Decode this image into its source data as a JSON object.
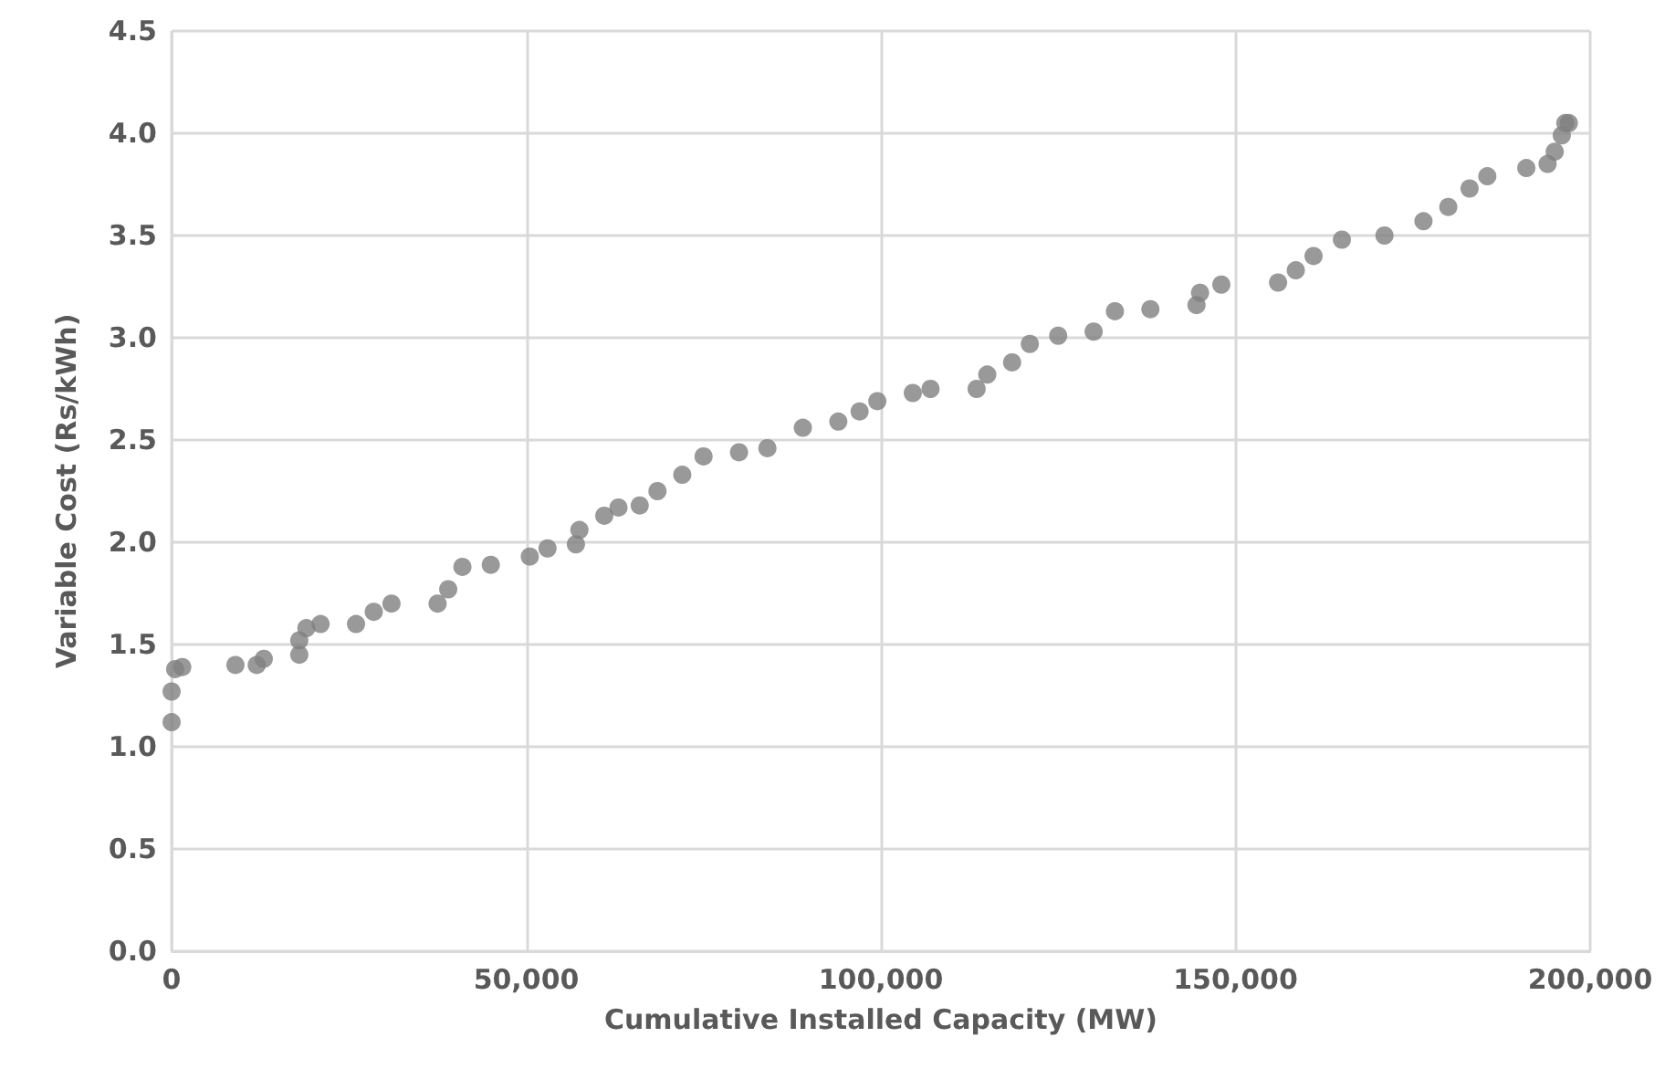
{
  "chart_data": {
    "type": "scatter",
    "xlabel": "Cumulative Installed Capacity (MW)",
    "ylabel": "Variable Cost (Rs/kWh)",
    "xlim": [
      0,
      200000
    ],
    "xticks": [
      {
        "value": 0,
        "label": "0"
      },
      {
        "value": 50000,
        "label": "50,000"
      },
      {
        "value": 100000,
        "label": "100,000"
      },
      {
        "value": 150000,
        "label": "150,000"
      },
      {
        "value": 200000,
        "label": "200,000"
      }
    ],
    "ylim": [
      0,
      4.5
    ],
    "yticks": [
      {
        "value": 0,
        "label": "0.0"
      },
      {
        "value": 0.5,
        "label": "0.5"
      },
      {
        "value": 1,
        "label": "1.0"
      },
      {
        "value": 1.5,
        "label": "1.5"
      },
      {
        "value": 2,
        "label": "2.0"
      },
      {
        "value": 2.5,
        "label": "2.5"
      },
      {
        "value": 3,
        "label": "3.0"
      },
      {
        "value": 3.5,
        "label": "3.5"
      },
      {
        "value": 4,
        "label": "4.0"
      },
      {
        "value": 4.5,
        "label": "4.5"
      }
    ],
    "grid": true,
    "marker": "circle",
    "series": [
      {
        "color": "#7f7f7f",
        "x": [
          0,
          0,
          500,
          1500,
          9000,
          12000,
          13000,
          18000,
          18000,
          19000,
          21000,
          26000,
          28500,
          31000,
          37500,
          39000,
          41000,
          45000,
          50500,
          53000,
          57000,
          57500,
          61000,
          63000,
          66000,
          68500,
          72000,
          75000,
          80000,
          84000,
          89000,
          94000,
          97000,
          99500,
          104500,
          107000,
          113500,
          115000,
          118500,
          121000,
          125000,
          130000,
          133000,
          138000,
          144500,
          145000,
          148000,
          156000,
          158500,
          161000,
          165000,
          171000,
          176500,
          180000,
          183000,
          185500,
          191000,
          194000,
          195000,
          196000,
          196500,
          197000
        ],
        "values": [
          1.12,
          1.27,
          1.38,
          1.39,
          1.4,
          1.4,
          1.43,
          1.45,
          1.52,
          1.58,
          1.6,
          1.6,
          1.66,
          1.7,
          1.7,
          1.77,
          1.88,
          1.89,
          1.93,
          1.97,
          1.99,
          2.06,
          2.13,
          2.17,
          2.18,
          2.25,
          2.33,
          2.42,
          2.44,
          2.46,
          2.56,
          2.59,
          2.64,
          2.69,
          2.73,
          2.75,
          2.75,
          2.82,
          2.88,
          2.97,
          3.01,
          3.03,
          3.13,
          3.14,
          3.16,
          3.22,
          3.26,
          3.27,
          3.33,
          3.4,
          3.48,
          3.5,
          3.57,
          3.64,
          3.73,
          3.79,
          3.83,
          3.85,
          3.91,
          3.99,
          4.05,
          4.05
        ]
      }
    ]
  }
}
